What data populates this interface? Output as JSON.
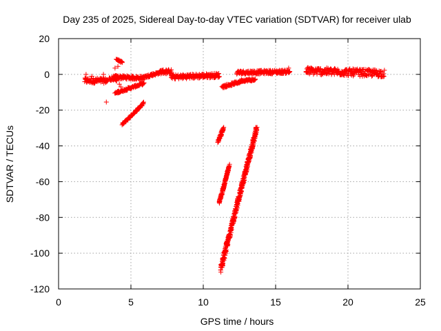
{
  "chart_data": {
    "type": "scatter",
    "title": "Day 235 of 2025, Sidereal Day-to-day VTEC variation (SDTVAR) for receiver ulab",
    "xlabel": "GPS time / hours",
    "ylabel": "SDTVAR / TECUs",
    "xlim": [
      0,
      25
    ],
    "ylim": [
      -120,
      20
    ],
    "xticks": [
      0,
      5,
      10,
      15,
      20,
      25
    ],
    "yticks": [
      -120,
      -100,
      -80,
      -60,
      -40,
      -20,
      0,
      20
    ],
    "grid": true,
    "marker": "+",
    "color": "#ff0000",
    "segments": [
      {
        "x0": 1.8,
        "y0": -3.5,
        "x1": 3.4,
        "y1": -3.5,
        "spread": 3.0
      },
      {
        "x0": 3.5,
        "y0": -2.5,
        "x1": 4.0,
        "y1": -3.0,
        "spread": 1.5
      },
      {
        "x0": 4.0,
        "y0": 8.5,
        "x1": 4.4,
        "y1": 6.5,
        "spread": 1.0
      },
      {
        "x0": 3.8,
        "y0": -1.5,
        "x1": 5.9,
        "y1": -2.0,
        "spread": 2.0
      },
      {
        "x0": 3.9,
        "y0": -10.5,
        "x1": 5.9,
        "y1": -5.0,
        "spread": 1.2
      },
      {
        "x0": 4.4,
        "y0": -28.0,
        "x1": 5.9,
        "y1": -16.0,
        "spread": 1.2
      },
      {
        "x0": 5.9,
        "y0": -1.5,
        "x1": 7.0,
        "y1": 1.0,
        "spread": 1.5
      },
      {
        "x0": 7.0,
        "y0": 1.5,
        "x1": 7.8,
        "y1": 1.5,
        "spread": 2.5
      },
      {
        "x0": 7.8,
        "y0": -1.5,
        "x1": 11.1,
        "y1": -0.5,
        "spread": 2.5
      },
      {
        "x0": 11.3,
        "y0": -7.0,
        "x1": 12.6,
        "y1": -4.0,
        "spread": 1.5
      },
      {
        "x0": 12.6,
        "y0": -3.5,
        "x1": 13.6,
        "y1": -3.0,
        "spread": 1.2
      },
      {
        "x0": 12.3,
        "y0": 1.0,
        "x1": 16.0,
        "y1": 1.5,
        "spread": 2.0
      },
      {
        "x0": 17.1,
        "y0": 2.0,
        "x1": 22.5,
        "y1": 0.5,
        "spread": 4.0
      },
      {
        "x0": 11.0,
        "y0": -38.0,
        "x1": 11.4,
        "y1": -30.0,
        "spread": 1.5
      },
      {
        "x0": 11.1,
        "y0": -72.0,
        "x1": 11.8,
        "y1": -51.0,
        "spread": 1.5
      },
      {
        "x0": 11.2,
        "y0": -109.0,
        "x1": 13.7,
        "y1": -30.0,
        "spread": 4.0
      }
    ],
    "scattered_points": [
      {
        "x": 3.3,
        "y": -15.5
      },
      {
        "x": 3.1,
        "y": 0.0
      },
      {
        "x": 3.9,
        "y": 3.5
      },
      {
        "x": 4.1,
        "y": 4.5
      },
      {
        "x": 4.3,
        "y": -7.0
      },
      {
        "x": 4.2,
        "y": -5.5
      },
      {
        "x": 15.9,
        "y": 3.5
      },
      {
        "x": 3.7,
        "y": -1.5
      },
      {
        "x": 1.9,
        "y": 0.0
      },
      {
        "x": 2.3,
        "y": -1.0
      }
    ]
  }
}
